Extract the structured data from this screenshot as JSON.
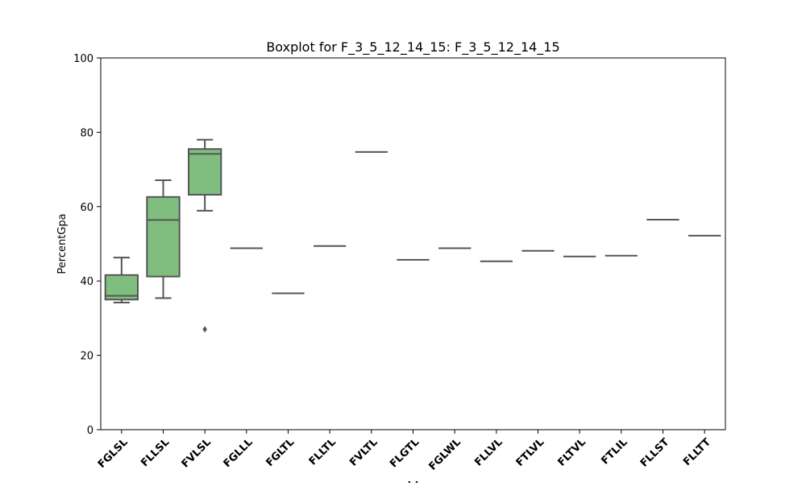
{
  "chart_data": {
    "type": "box",
    "title": "Boxplot for F_3_5_12_14_15: F_3_5_12_14_15",
    "xlabel": "AA",
    "ylabel": "PercentGpa",
    "ylim": [
      0,
      100
    ],
    "yticks": [
      0,
      20,
      40,
      60,
      80,
      100
    ],
    "grid": false,
    "colors": {
      "box_fill": "#7fbe7f",
      "line": "#555555",
      "axis": "#000000"
    },
    "categories": [
      "FGLSL",
      "FLLSL",
      "FVLSL",
      "FGLLL",
      "FGLTL",
      "FLLTL",
      "FVLTL",
      "FLGTL",
      "FGLWL",
      "FLLVL",
      "FTLVL",
      "FLTVL",
      "FTLIL",
      "FLLST",
      "FLLTT"
    ],
    "boxes": [
      {
        "min": 34.2,
        "q1": 35.0,
        "median": 36.0,
        "q3": 41.6,
        "max": 46.3,
        "outliers": []
      },
      {
        "min": 35.4,
        "q1": 41.2,
        "median": 56.4,
        "q3": 62.6,
        "max": 67.1,
        "outliers": []
      },
      {
        "min": 58.9,
        "q1": 63.2,
        "median": 74.2,
        "q3": 75.5,
        "max": 78.0,
        "outliers": [
          27.0
        ]
      },
      {
        "min": 48.8,
        "q1": 48.8,
        "median": 48.8,
        "q3": 48.8,
        "max": 48.8,
        "outliers": []
      },
      {
        "min": 36.7,
        "q1": 36.7,
        "median": 36.7,
        "q3": 36.7,
        "max": 36.7,
        "outliers": []
      },
      {
        "min": 49.4,
        "q1": 49.4,
        "median": 49.4,
        "q3": 49.4,
        "max": 49.4,
        "outliers": []
      },
      {
        "min": 74.7,
        "q1": 74.7,
        "median": 74.7,
        "q3": 74.7,
        "max": 74.7,
        "outliers": []
      },
      {
        "min": 45.7,
        "q1": 45.7,
        "median": 45.7,
        "q3": 45.7,
        "max": 45.7,
        "outliers": []
      },
      {
        "min": 48.8,
        "q1": 48.8,
        "median": 48.8,
        "q3": 48.8,
        "max": 48.8,
        "outliers": []
      },
      {
        "min": 45.3,
        "q1": 45.3,
        "median": 45.3,
        "q3": 45.3,
        "max": 45.3,
        "outliers": []
      },
      {
        "min": 48.1,
        "q1": 48.1,
        "median": 48.1,
        "q3": 48.1,
        "max": 48.1,
        "outliers": []
      },
      {
        "min": 46.6,
        "q1": 46.6,
        "median": 46.6,
        "q3": 46.6,
        "max": 46.6,
        "outliers": []
      },
      {
        "min": 46.8,
        "q1": 46.8,
        "median": 46.8,
        "q3": 46.8,
        "max": 46.8,
        "outliers": []
      },
      {
        "min": 56.5,
        "q1": 56.5,
        "median": 56.5,
        "q3": 56.5,
        "max": 56.5,
        "outliers": []
      },
      {
        "min": 52.2,
        "q1": 52.2,
        "median": 52.2,
        "q3": 52.2,
        "max": 52.2,
        "outliers": []
      }
    ]
  }
}
